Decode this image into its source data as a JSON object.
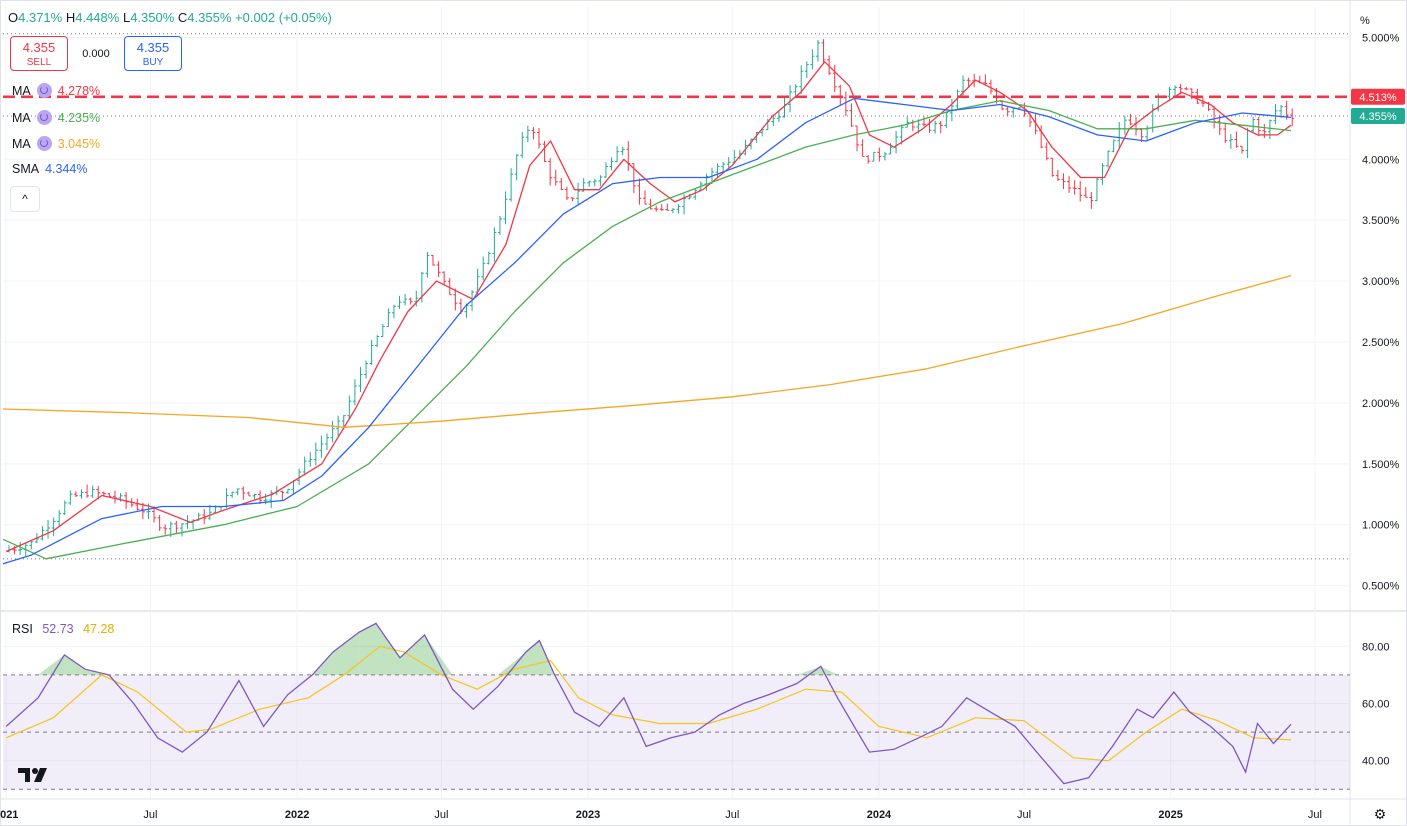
{
  "header": {
    "open_label": "O",
    "open": "4.371%",
    "high_label": "H",
    "high": "4.448%",
    "low_label": "L",
    "low": "4.350%",
    "close_label": "C",
    "close": "4.355%",
    "change": "+0.002 (+0.05%)"
  },
  "trade": {
    "sell_price": "4.355",
    "sell_label": "SELL",
    "spread": "0.000",
    "buy_price": "4.355",
    "buy_label": "BUY"
  },
  "indicators": [
    {
      "name": "MA",
      "value": "4.278%",
      "color": "#f23645"
    },
    {
      "name": "MA",
      "value": "4.235%",
      "color": "#4caf50"
    },
    {
      "name": "MA",
      "value": "3.045%",
      "color": "#f5a623"
    },
    {
      "name": "SMA",
      "value": "4.344%",
      "color": "#2962ff"
    }
  ],
  "rsi_legend": {
    "name": "RSI",
    "value1": "52.73",
    "value2": "47.28",
    "color1": "#7e57c2",
    "color2": "#f5c518"
  },
  "icons": {
    "collapse": "chevron-up-icon",
    "logo": "tradingview-logo",
    "settings": "gear-icon"
  },
  "chart_data": {
    "type": "ohlc",
    "unit_label": "%",
    "ylim": [
      0.3,
      5.25
    ],
    "y_ticks": [
      0.5,
      1.0,
      1.5,
      2.0,
      2.5,
      3.0,
      3.5,
      4.0,
      4.5,
      5.0
    ],
    "y_tick_labels": [
      "0.500%",
      "1.000%",
      "1.500%",
      "2.000%",
      "2.500%",
      "3.000%",
      "3.500%",
      "4.000%",
      "4.500%",
      "5.000%"
    ],
    "x_ticks": [
      "2021-01-01",
      "2021-07-01",
      "2022-01-01",
      "2022-07-01",
      "2023-01-01",
      "2023-07-01",
      "2024-01-01",
      "2024-07-01",
      "2025-01-01",
      "2025-07-01"
    ],
    "x_tick_labels": [
      "2021",
      "Jul",
      "2022",
      "Jul",
      "2023",
      "Jul",
      "2024",
      "Jul",
      "2025",
      "Jul"
    ],
    "x_range": [
      "2020-12-28",
      "2025-08-14"
    ],
    "horizontal_lines": [
      {
        "value": 5.03,
        "style": "dotted",
        "color": "#787b86"
      },
      {
        "value": 4.355,
        "style": "dotted",
        "color": "#787b86"
      },
      {
        "value": 0.72,
        "style": "dotted",
        "color": "#787b86"
      }
    ],
    "alert_line": {
      "value": 4.513,
      "label": "4.513%",
      "color": "#f23645"
    },
    "last_price": {
      "value": 4.355,
      "label": "4.355%",
      "color": "#22ab94"
    },
    "price_path": [
      [
        "2021-01-01",
        0.78
      ],
      [
        "2021-02-05",
        0.85
      ],
      [
        "2021-03-05",
        1.05
      ],
      [
        "2021-03-25",
        1.22
      ],
      [
        "2021-04-20",
        1.27
      ],
      [
        "2021-05-25",
        1.22
      ],
      [
        "2021-06-25",
        1.12
      ],
      [
        "2021-07-20",
        0.98
      ],
      [
        "2021-08-20",
        1.02
      ],
      [
        "2021-09-20",
        1.1
      ],
      [
        "2021-10-20",
        1.3
      ],
      [
        "2021-11-20",
        1.22
      ],
      [
        "2021-12-20",
        1.28
      ],
      [
        "2022-01-20",
        1.55
      ],
      [
        "2022-02-15",
        1.75
      ],
      [
        "2022-03-01",
        1.85
      ],
      [
        "2022-04-01",
        2.35
      ],
      [
        "2022-04-20",
        2.6
      ],
      [
        "2022-05-10",
        2.85
      ],
      [
        "2022-06-01",
        2.8
      ],
      [
        "2022-06-15",
        3.25
      ],
      [
        "2022-07-10",
        2.95
      ],
      [
        "2022-08-01",
        2.75
      ],
      [
        "2022-08-25",
        3.1
      ],
      [
        "2022-09-15",
        3.5
      ],
      [
        "2022-10-10",
        4.1
      ],
      [
        "2022-10-25",
        4.3
      ],
      [
        "2022-11-15",
        3.9
      ],
      [
        "2022-12-10",
        3.65
      ],
      [
        "2022-12-30",
        3.8
      ],
      [
        "2023-01-20",
        3.85
      ],
      [
        "2023-02-15",
        4.15
      ],
      [
        "2023-03-10",
        3.65
      ],
      [
        "2023-04-10",
        3.55
      ],
      [
        "2023-05-10",
        3.7
      ],
      [
        "2023-05-30",
        3.85
      ],
      [
        "2023-06-20",
        3.95
      ],
      [
        "2023-07-15",
        4.05
      ],
      [
        "2023-08-10",
        4.25
      ],
      [
        "2023-09-05",
        4.4
      ],
      [
        "2023-09-25",
        4.65
      ],
      [
        "2023-10-20",
        4.95
      ],
      [
        "2023-11-05",
        4.7
      ],
      [
        "2023-11-25",
        4.4
      ],
      [
        "2023-12-15",
        4.0
      ],
      [
        "2024-01-10",
        4.05
      ],
      [
        "2024-02-10",
        4.3
      ],
      [
        "2024-03-05",
        4.25
      ],
      [
        "2024-03-25",
        4.3
      ],
      [
        "2024-04-20",
        4.65
      ],
      [
        "2024-05-20",
        4.6
      ],
      [
        "2024-06-10",
        4.4
      ],
      [
        "2024-07-01",
        4.45
      ],
      [
        "2024-07-20",
        4.2
      ],
      [
        "2024-08-10",
        3.85
      ],
      [
        "2024-09-05",
        3.75
      ],
      [
        "2024-09-25",
        3.65
      ],
      [
        "2024-10-15",
        4.0
      ],
      [
        "2024-11-10",
        4.35
      ],
      [
        "2024-12-01",
        4.2
      ],
      [
        "2024-12-20",
        4.5
      ],
      [
        "2025-01-10",
        4.62
      ],
      [
        "2025-01-25",
        4.55
      ],
      [
        "2025-02-15",
        4.45
      ],
      [
        "2025-03-10",
        4.2
      ],
      [
        "2025-04-05",
        4.05
      ],
      [
        "2025-04-15",
        4.35
      ],
      [
        "2025-05-01",
        4.2
      ],
      [
        "2025-05-20",
        4.45
      ],
      [
        "2025-06-01",
        4.36
      ]
    ],
    "series": [
      {
        "name": "MA",
        "color": "#f23645",
        "points": [
          [
            "2021-01-01",
            0.78
          ],
          [
            "2021-03-01",
            0.95
          ],
          [
            "2021-05-01",
            1.24
          ],
          [
            "2021-07-01",
            1.15
          ],
          [
            "2021-08-20",
            1.02
          ],
          [
            "2021-10-01",
            1.12
          ],
          [
            "2021-12-01",
            1.25
          ],
          [
            "2022-02-01",
            1.5
          ],
          [
            "2022-03-15",
            1.95
          ],
          [
            "2022-04-15",
            2.35
          ],
          [
            "2022-05-20",
            2.75
          ],
          [
            "2022-06-25",
            3.0
          ],
          [
            "2022-08-10",
            2.85
          ],
          [
            "2022-09-20",
            3.3
          ],
          [
            "2022-10-20",
            3.95
          ],
          [
            "2022-11-15",
            4.15
          ],
          [
            "2022-12-15",
            3.75
          ],
          [
            "2023-01-15",
            3.75
          ],
          [
            "2023-02-15",
            4.0
          ],
          [
            "2023-03-20",
            3.8
          ],
          [
            "2023-04-20",
            3.65
          ],
          [
            "2023-05-25",
            3.75
          ],
          [
            "2023-07-01",
            3.95
          ],
          [
            "2023-08-20",
            4.35
          ],
          [
            "2023-09-25",
            4.55
          ],
          [
            "2023-10-25",
            4.8
          ],
          [
            "2023-11-25",
            4.6
          ],
          [
            "2023-12-20",
            4.2
          ],
          [
            "2024-01-20",
            4.1
          ],
          [
            "2024-02-25",
            4.25
          ],
          [
            "2024-04-01",
            4.45
          ],
          [
            "2024-05-01",
            4.65
          ],
          [
            "2024-06-01",
            4.55
          ],
          [
            "2024-07-05",
            4.4
          ],
          [
            "2024-08-05",
            4.1
          ],
          [
            "2024-09-10",
            3.85
          ],
          [
            "2024-10-10",
            3.85
          ],
          [
            "2024-11-10",
            4.25
          ],
          [
            "2024-12-10",
            4.4
          ],
          [
            "2025-01-15",
            4.55
          ],
          [
            "2025-02-20",
            4.45
          ],
          [
            "2025-03-20",
            4.3
          ],
          [
            "2025-04-20",
            4.2
          ],
          [
            "2025-05-15",
            4.2
          ],
          [
            "2025-06-01",
            4.28
          ]
        ]
      },
      {
        "name": "MA",
        "color": "#4caf50",
        "points": [
          [
            "2020-12-28",
            0.88
          ],
          [
            "2021-02-20",
            0.72
          ],
          [
            "2021-06-01",
            0.85
          ],
          [
            "2021-10-01",
            1.0
          ],
          [
            "2022-01-01",
            1.15
          ],
          [
            "2022-04-01",
            1.5
          ],
          [
            "2022-06-01",
            1.9
          ],
          [
            "2022-08-01",
            2.3
          ],
          [
            "2022-10-01",
            2.75
          ],
          [
            "2022-12-01",
            3.15
          ],
          [
            "2023-02-01",
            3.45
          ],
          [
            "2023-04-01",
            3.65
          ],
          [
            "2023-06-01",
            3.8
          ],
          [
            "2023-08-01",
            3.95
          ],
          [
            "2023-10-01",
            4.1
          ],
          [
            "2023-12-01",
            4.2
          ],
          [
            "2024-02-01",
            4.28
          ],
          [
            "2024-04-01",
            4.4
          ],
          [
            "2024-06-01",
            4.48
          ],
          [
            "2024-08-01",
            4.4
          ],
          [
            "2024-10-01",
            4.25
          ],
          [
            "2024-12-01",
            4.25
          ],
          [
            "2025-02-01",
            4.32
          ],
          [
            "2025-04-01",
            4.28
          ],
          [
            "2025-06-01",
            4.235
          ]
        ]
      },
      {
        "name": "MA",
        "color": "#f5a623",
        "points": [
          [
            "2020-12-28",
            1.95
          ],
          [
            "2021-06-01",
            1.92
          ],
          [
            "2021-11-01",
            1.88
          ],
          [
            "2022-03-01",
            1.8
          ],
          [
            "2022-07-01",
            1.85
          ],
          [
            "2022-11-01",
            1.92
          ],
          [
            "2023-03-01",
            1.98
          ],
          [
            "2023-07-01",
            2.05
          ],
          [
            "2023-11-01",
            2.15
          ],
          [
            "2024-03-01",
            2.28
          ],
          [
            "2024-07-01",
            2.47
          ],
          [
            "2024-11-01",
            2.65
          ],
          [
            "2025-03-01",
            2.88
          ],
          [
            "2025-06-01",
            3.045
          ]
        ]
      },
      {
        "name": "SMA",
        "color": "#2962ff",
        "points": [
          [
            "2020-12-28",
            0.68
          ],
          [
            "2021-02-01",
            0.75
          ],
          [
            "2021-05-01",
            1.05
          ],
          [
            "2021-07-15",
            1.15
          ],
          [
            "2021-10-01",
            1.15
          ],
          [
            "2021-12-15",
            1.2
          ],
          [
            "2022-02-01",
            1.4
          ],
          [
            "2022-04-01",
            1.8
          ],
          [
            "2022-06-01",
            2.3
          ],
          [
            "2022-08-01",
            2.8
          ],
          [
            "2022-10-01",
            3.15
          ],
          [
            "2022-12-01",
            3.55
          ],
          [
            "2023-02-01",
            3.8
          ],
          [
            "2023-04-01",
            3.85
          ],
          [
            "2023-06-01",
            3.85
          ],
          [
            "2023-08-01",
            4.0
          ],
          [
            "2023-10-01",
            4.3
          ],
          [
            "2023-12-01",
            4.5
          ],
          [
            "2024-02-01",
            4.45
          ],
          [
            "2024-04-01",
            4.4
          ],
          [
            "2024-06-01",
            4.45
          ],
          [
            "2024-08-01",
            4.35
          ],
          [
            "2024-10-01",
            4.2
          ],
          [
            "2024-12-01",
            4.15
          ],
          [
            "2025-02-01",
            4.3
          ],
          [
            "2025-04-01",
            4.38
          ],
          [
            "2025-06-01",
            4.344
          ]
        ]
      }
    ],
    "rsi": {
      "ylim": [
        28,
        92
      ],
      "y_ticks": [
        40,
        60,
        80
      ],
      "y_tick_labels": [
        "40.00",
        "60.00",
        "80.00"
      ],
      "band": [
        30,
        70
      ],
      "midline": 50,
      "rsi_line": [
        [
          "2021-01-01",
          52
        ],
        [
          "2021-02-10",
          62
        ],
        [
          "2021-03-15",
          77
        ],
        [
          "2021-04-10",
          72
        ],
        [
          "2021-05-10",
          70
        ],
        [
          "2021-06-10",
          60
        ],
        [
          "2021-07-10",
          48
        ],
        [
          "2021-08-10",
          43
        ],
        [
          "2021-09-10",
          50
        ],
        [
          "2021-10-20",
          68
        ],
        [
          "2021-11-20",
          52
        ],
        [
          "2021-12-20",
          63
        ],
        [
          "2022-01-20",
          70
        ],
        [
          "2022-02-15",
          78
        ],
        [
          "2022-03-20",
          85
        ],
        [
          "2022-04-10",
          88
        ],
        [
          "2022-05-10",
          76
        ],
        [
          "2022-06-10",
          84
        ],
        [
          "2022-07-15",
          65
        ],
        [
          "2022-08-10",
          58
        ],
        [
          "2022-09-10",
          66
        ],
        [
          "2022-10-15",
          78
        ],
        [
          "2022-11-01",
          82
        ],
        [
          "2022-11-20",
          70
        ],
        [
          "2022-12-15",
          57
        ],
        [
          "2023-01-15",
          52
        ],
        [
          "2023-02-15",
          62
        ],
        [
          "2023-03-15",
          45
        ],
        [
          "2023-04-15",
          48
        ],
        [
          "2023-05-15",
          50
        ],
        [
          "2023-06-15",
          56
        ],
        [
          "2023-07-15",
          60
        ],
        [
          "2023-08-15",
          63
        ],
        [
          "2023-09-20",
          67
        ],
        [
          "2023-10-20",
          73
        ],
        [
          "2023-11-10",
          62
        ],
        [
          "2023-12-01",
          52
        ],
        [
          "2023-12-20",
          43
        ],
        [
          "2024-01-20",
          44
        ],
        [
          "2024-02-20",
          48
        ],
        [
          "2024-03-20",
          52
        ],
        [
          "2024-04-20",
          62
        ],
        [
          "2024-05-20",
          57
        ],
        [
          "2024-06-20",
          52
        ],
        [
          "2024-07-20",
          42
        ],
        [
          "2024-08-20",
          32
        ],
        [
          "2024-09-20",
          34
        ],
        [
          "2024-10-20",
          45
        ],
        [
          "2024-11-20",
          58
        ],
        [
          "2024-12-10",
          55
        ],
        [
          "2025-01-05",
          64
        ],
        [
          "2025-01-25",
          57
        ],
        [
          "2025-02-20",
          52
        ],
        [
          "2025-03-20",
          45
        ],
        [
          "2025-04-05",
          36
        ],
        [
          "2025-04-20",
          53
        ],
        [
          "2025-05-10",
          46
        ],
        [
          "2025-06-01",
          52.73
        ]
      ],
      "signal_line": [
        [
          "2021-01-01",
          48
        ],
        [
          "2021-03-01",
          55
        ],
        [
          "2021-05-01",
          70
        ],
        [
          "2021-06-15",
          64
        ],
        [
          "2021-08-15",
          50
        ],
        [
          "2021-09-15",
          51
        ],
        [
          "2021-11-15",
          58
        ],
        [
          "2022-01-15",
          62
        ],
        [
          "2022-03-01",
          70
        ],
        [
          "2022-04-15",
          80
        ],
        [
          "2022-05-15",
          78
        ],
        [
          "2022-07-01",
          70
        ],
        [
          "2022-08-15",
          65
        ],
        [
          "2022-10-01",
          72
        ],
        [
          "2022-11-15",
          75
        ],
        [
          "2022-12-20",
          62
        ],
        [
          "2023-02-01",
          56
        ],
        [
          "2023-04-01",
          53
        ],
        [
          "2023-06-01",
          53
        ],
        [
          "2023-08-01",
          58
        ],
        [
          "2023-10-01",
          65
        ],
        [
          "2023-11-15",
          64
        ],
        [
          "2024-01-01",
          52
        ],
        [
          "2024-03-01",
          48
        ],
        [
          "2024-05-01",
          55
        ],
        [
          "2024-07-01",
          54
        ],
        [
          "2024-09-01",
          41
        ],
        [
          "2024-10-15",
          40
        ],
        [
          "2024-12-01",
          50
        ],
        [
          "2025-01-15",
          58
        ],
        [
          "2025-03-01",
          54
        ],
        [
          "2025-04-15",
          48
        ],
        [
          "2025-06-01",
          47.28
        ]
      ]
    }
  }
}
